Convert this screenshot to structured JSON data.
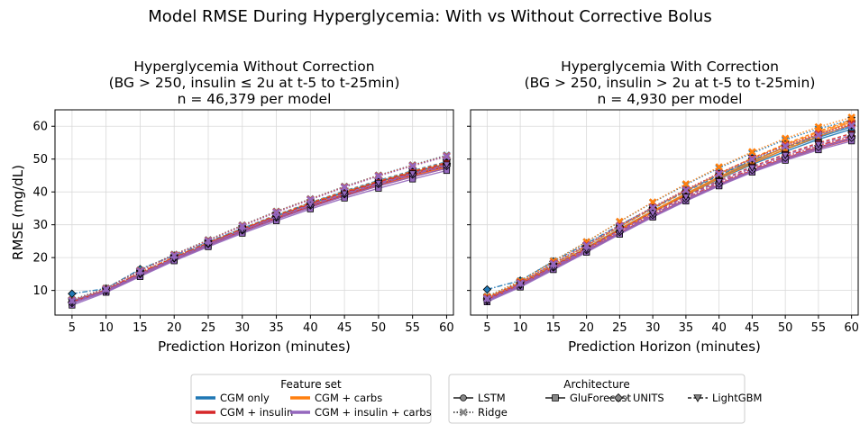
{
  "figure": {
    "suptitle": "Model RMSE During Hyperglycemia: With vs Without Corrective Bolus",
    "ylabel": "RMSE (mg/dL)"
  },
  "colors": {
    "CGM only": "#1f77b4",
    "CGM + carbs": "#ff7f0e",
    "CGM + insulin": "#d62728",
    "CGM + insulin + carbs": "#9467bd"
  },
  "legends": {
    "features": {
      "title": "Feature set",
      "items": [
        "CGM only",
        "CGM + carbs",
        "CGM + insulin",
        "CGM + insulin + carbs"
      ]
    },
    "architecture": {
      "title": "Architecture",
      "items": [
        {
          "label": "LSTM",
          "marker": "circle",
          "dash": "solid"
        },
        {
          "label": "GluForecast",
          "marker": "square",
          "dash": "solid"
        },
        {
          "label": "UNITS",
          "marker": "diamond",
          "dash": "dashdot"
        },
        {
          "label": "LightGBM",
          "marker": "triangle-down",
          "dash": "dashed"
        },
        {
          "label": "Ridge",
          "marker": "x",
          "dash": "dotted"
        }
      ]
    }
  },
  "chart_data": [
    {
      "type": "line",
      "title_lines": [
        "Hyperglycemia Without Correction",
        "(BG > 250, insulin ≤ 2u at t-5 to t-25min)",
        "n = 46,379 per model"
      ],
      "xlabel": "Prediction Horizon (minutes)",
      "ylabel": "RMSE (mg/dL)",
      "x": [
        5,
        10,
        15,
        20,
        25,
        30,
        35,
        40,
        45,
        50,
        55,
        60
      ],
      "xlim": [
        2.5,
        61
      ],
      "ylim": [
        2.5,
        65
      ],
      "yticks": [
        10,
        20,
        30,
        40,
        50,
        60
      ],
      "grid": true,
      "series": [
        {
          "feature": "CGM only",
          "arch": "LSTM",
          "values": [
            6.8,
            10.0,
            15.0,
            19.8,
            24.2,
            28.5,
            32.6,
            36.4,
            39.8,
            43.1,
            45.9,
            48.5
          ]
        },
        {
          "feature": "CGM only",
          "arch": "GluForecast",
          "values": [
            6.5,
            9.8,
            14.7,
            19.5,
            23.9,
            28.1,
            32.1,
            35.8,
            39.2,
            42.4,
            45.3,
            47.9
          ]
        },
        {
          "feature": "CGM only",
          "arch": "UNITS",
          "values": [
            9.0,
            10.6,
            16.5,
            20.6,
            24.8,
            28.9,
            32.8,
            36.7,
            40.0,
            43.2,
            46.1,
            48.7
          ]
        },
        {
          "feature": "CGM only",
          "arch": "LightGBM",
          "values": [
            6.9,
            10.2,
            15.3,
            20.1,
            24.6,
            28.9,
            33.0,
            36.8,
            40.3,
            43.5,
            46.5,
            49.2
          ]
        },
        {
          "feature": "CGM only",
          "arch": "Ridge",
          "values": [
            7.2,
            10.7,
            16.2,
            21.0,
            25.4,
            29.9,
            34.1,
            37.9,
            41.7,
            45.1,
            48.2,
            51.2
          ]
        },
        {
          "feature": "CGM + carbs",
          "arch": "LSTM",
          "values": [
            6.6,
            9.9,
            14.9,
            19.6,
            24.0,
            28.2,
            32.2,
            35.9,
            39.4,
            42.6,
            45.5,
            48.1
          ]
        },
        {
          "feature": "CGM + carbs",
          "arch": "GluForecast",
          "values": [
            6.4,
            9.7,
            14.6,
            19.3,
            23.7,
            27.9,
            31.8,
            35.5,
            38.9,
            42.0,
            44.9,
            47.5
          ]
        },
        {
          "feature": "CGM + carbs",
          "arch": "UNITS",
          "values": [
            6.5,
            10.2,
            15.5,
            20.2,
            24.5,
            28.7,
            32.6,
            36.4,
            39.8,
            43.0,
            46.0,
            48.6
          ]
        },
        {
          "feature": "CGM + carbs",
          "arch": "LightGBM",
          "values": [
            6.8,
            10.1,
            15.2,
            20.0,
            24.5,
            28.8,
            32.9,
            36.7,
            40.1,
            43.3,
            46.3,
            49.0
          ]
        },
        {
          "feature": "CGM + carbs",
          "arch": "Ridge",
          "values": [
            7.1,
            10.6,
            16.1,
            20.9,
            25.3,
            29.8,
            34.0,
            37.8,
            41.6,
            45.0,
            48.1,
            51.0
          ]
        },
        {
          "feature": "CGM + insulin",
          "arch": "LSTM",
          "values": [
            6.5,
            9.8,
            14.8,
            19.5,
            23.9,
            28.1,
            32.0,
            35.7,
            39.1,
            42.3,
            45.2,
            47.8
          ]
        },
        {
          "feature": "CGM + insulin",
          "arch": "GluForecast",
          "values": [
            6.3,
            9.6,
            14.5,
            19.2,
            23.6,
            27.8,
            31.7,
            35.3,
            38.7,
            41.8,
            44.6,
            47.2
          ]
        },
        {
          "feature": "CGM + insulin",
          "arch": "UNITS",
          "values": [
            6.4,
            10.1,
            15.3,
            20.0,
            24.4,
            28.6,
            32.5,
            36.2,
            39.6,
            42.8,
            45.7,
            48.3
          ]
        },
        {
          "feature": "CGM + insulin",
          "arch": "LightGBM",
          "values": [
            6.7,
            10.0,
            15.1,
            19.9,
            24.3,
            28.6,
            32.7,
            36.5,
            39.9,
            43.1,
            46.1,
            48.8
          ]
        },
        {
          "feature": "CGM + insulin",
          "arch": "Ridge",
          "values": [
            7.0,
            10.5,
            16.0,
            20.8,
            25.2,
            29.7,
            33.9,
            37.7,
            41.5,
            44.9,
            48.0,
            50.9
          ]
        },
        {
          "feature": "CGM + insulin + carbs",
          "arch": "LSTM",
          "values": [
            6.0,
            9.7,
            14.6,
            19.3,
            23.7,
            27.8,
            31.7,
            35.3,
            38.7,
            41.8,
            44.6,
            47.2
          ]
        },
        {
          "feature": "CGM + insulin + carbs",
          "arch": "GluForecast",
          "values": [
            5.5,
            9.4,
            14.2,
            19.0,
            23.3,
            27.4,
            31.2,
            34.8,
            38.1,
            41.1,
            43.9,
            46.5
          ]
        },
        {
          "feature": "CGM + insulin + carbs",
          "arch": "UNITS",
          "values": [
            6.2,
            9.9,
            15.0,
            19.8,
            24.2,
            28.3,
            32.2,
            35.9,
            39.3,
            42.4,
            45.3,
            47.9
          ]
        },
        {
          "feature": "CGM + insulin + carbs",
          "arch": "LightGBM",
          "values": [
            6.5,
            9.9,
            15.0,
            19.7,
            24.1,
            28.4,
            32.4,
            36.1,
            39.5,
            42.7,
            45.6,
            48.3
          ]
        },
        {
          "feature": "CGM + insulin + carbs",
          "arch": "Ridge",
          "values": [
            6.9,
            10.4,
            15.9,
            20.7,
            25.1,
            29.6,
            33.8,
            37.6,
            41.4,
            44.8,
            47.9,
            50.8
          ]
        }
      ]
    },
    {
      "type": "line",
      "title_lines": [
        "Hyperglycemia With Correction",
        "(BG > 250, insulin > 2u at t-5 to t-25min)",
        "n = 4,930 per model"
      ],
      "xlabel": "Prediction Horizon (minutes)",
      "x": [
        5,
        10,
        15,
        20,
        25,
        30,
        35,
        40,
        45,
        50,
        55,
        60
      ],
      "xlim": [
        2.5,
        61
      ],
      "ylim": [
        2.5,
        65
      ],
      "yticks": [
        10,
        20,
        30,
        40,
        50,
        60
      ],
      "grid": true,
      "series": [
        {
          "feature": "CGM only",
          "arch": "LSTM",
          "values": [
            7.6,
            12.0,
            17.5,
            23.0,
            28.8,
            34.2,
            39.4,
            44.4,
            48.9,
            52.9,
            56.6,
            59.8
          ]
        },
        {
          "feature": "CGM only",
          "arch": "GluForecast",
          "values": [
            7.4,
            11.8,
            17.2,
            22.7,
            28.4,
            33.8,
            39.0,
            43.9,
            48.4,
            52.3,
            56.0,
            59.1
          ]
        },
        {
          "feature": "CGM only",
          "arch": "UNITS",
          "values": [
            10.3,
            13.0,
            18.8,
            24.3,
            29.9,
            35.2,
            40.3,
            45.2,
            49.6,
            53.6,
            57.2,
            60.3
          ]
        },
        {
          "feature": "CGM only",
          "arch": "LightGBM",
          "values": [
            7.9,
            12.4,
            18.1,
            23.6,
            29.4,
            34.9,
            40.1,
            45.0,
            49.5,
            53.5,
            57.1,
            60.2
          ]
        },
        {
          "feature": "CGM only",
          "arch": "Ridge",
          "values": [
            8.2,
            12.9,
            19.0,
            24.8,
            30.9,
            36.8,
            42.2,
            47.3,
            51.8,
            55.9,
            59.2,
            62.0
          ]
        },
        {
          "feature": "CGM + carbs",
          "arch": "LSTM",
          "values": [
            7.5,
            11.9,
            17.4,
            22.9,
            28.7,
            34.2,
            39.5,
            44.6,
            49.3,
            53.6,
            57.6,
            61.3
          ]
        },
        {
          "feature": "CGM + carbs",
          "arch": "GluForecast",
          "values": [
            7.3,
            11.7,
            17.1,
            22.6,
            28.3,
            33.8,
            39.1,
            44.1,
            48.7,
            53.0,
            56.9,
            60.5
          ]
        },
        {
          "feature": "CGM + carbs",
          "arch": "UNITS",
          "values": [
            7.6,
            12.3,
            18.0,
            23.5,
            29.4,
            35.0,
            40.3,
            45.4,
            50.1,
            54.3,
            58.2,
            61.6
          ]
        },
        {
          "feature": "CGM + carbs",
          "arch": "LightGBM",
          "values": [
            7.8,
            12.3,
            18.0,
            23.6,
            29.5,
            35.1,
            40.5,
            45.6,
            50.3,
            54.6,
            58.5,
            61.9
          ]
        },
        {
          "feature": "CGM + carbs",
          "arch": "Ridge",
          "values": [
            8.1,
            12.8,
            18.9,
            24.8,
            31.0,
            36.9,
            42.4,
            47.6,
            52.2,
            56.3,
            59.8,
            62.7
          ]
        },
        {
          "feature": "CGM + insulin",
          "arch": "LSTM",
          "values": [
            7.1,
            11.5,
            16.8,
            22.1,
            27.6,
            32.8,
            37.7,
            42.3,
            46.6,
            50.3,
            53.6,
            56.5
          ]
        },
        {
          "feature": "CGM + insulin",
          "arch": "GluForecast",
          "values": [
            6.9,
            11.3,
            16.5,
            21.8,
            27.3,
            32.5,
            37.4,
            42.0,
            46.2,
            49.9,
            53.2,
            56.0
          ]
        },
        {
          "feature": "CGM + insulin",
          "arch": "UNITS",
          "values": [
            7.2,
            11.8,
            17.2,
            22.5,
            28.0,
            33.2,
            38.1,
            42.8,
            47.0,
            50.8,
            54.1,
            57.0
          ]
        },
        {
          "feature": "CGM + insulin",
          "arch": "LightGBM",
          "values": [
            7.4,
            11.9,
            17.4,
            22.8,
            28.4,
            33.7,
            38.7,
            43.4,
            47.7,
            51.5,
            54.9,
            57.8
          ]
        },
        {
          "feature": "CGM + insulin",
          "arch": "Ridge",
          "values": [
            7.7,
            12.4,
            18.3,
            23.9,
            29.8,
            35.4,
            40.7,
            45.7,
            50.2,
            54.2,
            57.7,
            60.7
          ]
        },
        {
          "feature": "CGM + insulin + carbs",
          "arch": "LSTM",
          "values": [
            6.8,
            11.3,
            16.6,
            21.9,
            27.4,
            32.6,
            37.5,
            42.1,
            46.3,
            50.0,
            53.3,
            56.2
          ]
        },
        {
          "feature": "CGM + insulin + carbs",
          "arch": "GluForecast",
          "values": [
            6.5,
            11.0,
            16.3,
            21.6,
            27.1,
            32.3,
            37.2,
            41.8,
            46.0,
            49.6,
            52.8,
            55.5
          ]
        },
        {
          "feature": "CGM + insulin + carbs",
          "arch": "UNITS",
          "values": [
            6.9,
            11.6,
            17.0,
            22.3,
            27.8,
            33.0,
            37.9,
            42.5,
            46.7,
            50.4,
            53.7,
            56.5
          ]
        },
        {
          "feature": "CGM + insulin + carbs",
          "arch": "LightGBM",
          "values": [
            7.1,
            11.7,
            17.2,
            22.6,
            28.2,
            33.5,
            38.5,
            43.2,
            47.4,
            51.2,
            54.5,
            57.3
          ]
        },
        {
          "feature": "CGM + insulin + carbs",
          "arch": "Ridge",
          "values": [
            7.5,
            12.2,
            18.1,
            23.7,
            29.6,
            35.2,
            40.5,
            45.5,
            50.0,
            53.9,
            57.3,
            60.2
          ]
        }
      ]
    }
  ]
}
